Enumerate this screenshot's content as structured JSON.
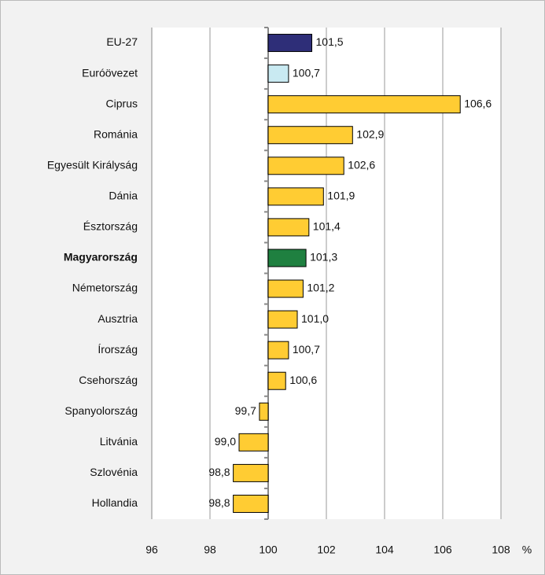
{
  "chart_data": {
    "type": "bar",
    "orientation": "horizontal",
    "categories": [
      "EU-27",
      "Euróövezet",
      "Ciprus",
      "Románia",
      "Egyesült Királyság",
      "Dánia",
      "Észtország",
      "Magyarország",
      "Németország",
      "Ausztria",
      "Írország",
      "Csehország",
      "Spanyolország",
      "Litvánia",
      "Szlovénia",
      "Hollandia"
    ],
    "values": [
      101.5,
      100.7,
      106.6,
      102.9,
      102.6,
      101.9,
      101.4,
      101.3,
      101.2,
      101.0,
      100.7,
      100.6,
      99.7,
      99.0,
      98.8,
      98.8
    ],
    "value_labels": [
      "101,5",
      "100,7",
      "106,6",
      "102,9",
      "102,6",
      "101,9",
      "101,4",
      "101,3",
      "101,2",
      "101,0",
      "100,7",
      "100,6",
      "99,7",
      "99,0",
      "98,8",
      "98,8"
    ],
    "colors": [
      "#2e2e78",
      "#c9eaf2",
      "#ffcc33",
      "#ffcc33",
      "#ffcc33",
      "#ffcc33",
      "#ffcc33",
      "#1f8040",
      "#ffcc33",
      "#ffcc33",
      "#ffcc33",
      "#ffcc33",
      "#ffcc33",
      "#ffcc33",
      "#ffcc33",
      "#ffcc33"
    ],
    "bold": [
      false,
      false,
      false,
      false,
      false,
      false,
      false,
      true,
      false,
      false,
      false,
      false,
      false,
      false,
      false,
      false
    ],
    "base": 100,
    "xlim": [
      96,
      108
    ],
    "xticks": [
      96,
      98,
      100,
      102,
      104,
      106,
      108
    ],
    "x_unit": "%",
    "grid": true
  }
}
